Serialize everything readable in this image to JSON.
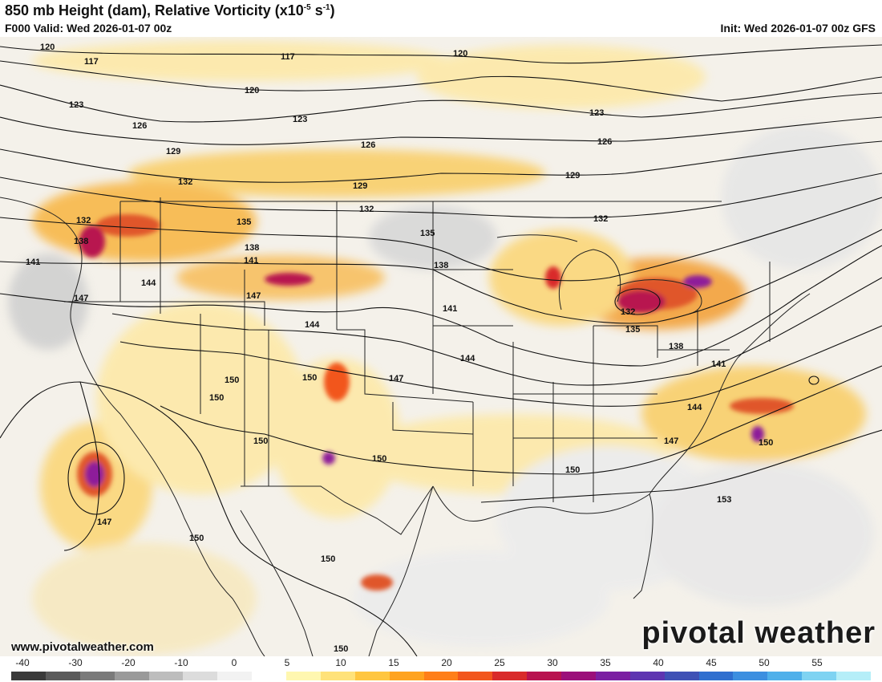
{
  "header": {
    "title_main": "850 mb Height (dam), Relative Vorticity (x10",
    "title_exp": "-5",
    "title_unit_mid": " s",
    "title_unit_exp": "-1",
    "title_end": ")",
    "valid": "F000 Valid: Wed 2026-01-07 00z",
    "init": "Init: Wed 2026-01-07 00z GFS"
  },
  "branding": {
    "url": "www.pivotalweather.com",
    "logo": "pivotal weather"
  },
  "colorbar": {
    "tick_labels": [
      "-40",
      "-30",
      "-20",
      "-10",
      "0",
      "5",
      "10",
      "15",
      "20",
      "25",
      "30",
      "35",
      "40",
      "45",
      "50",
      "55"
    ],
    "colors": [
      "#3a3a3a",
      "#5a5a5a",
      "#7a7a7a",
      "#9a9a9a",
      "#bdbdbd",
      "#dcdcdc",
      "#f2f2f2",
      "#ffffff",
      "#fff7b0",
      "#ffe27a",
      "#ffc640",
      "#ffa320",
      "#ff7f1a",
      "#f2561d",
      "#d92a2a",
      "#b8124f",
      "#9b0f7a",
      "#7b1fa2",
      "#5e35b1",
      "#3f51b5",
      "#2f6fcf",
      "#3c8fe0",
      "#4fb0ea",
      "#7fd3f2",
      "#b5eef8"
    ]
  },
  "map": {
    "contour_labels": [
      "117",
      "120",
      "123",
      "126",
      "129",
      "132",
      "135",
      "138",
      "141",
      "144",
      "147",
      "150",
      "153"
    ],
    "colors": {
      "land_bg": "#f4f1ea",
      "vort_light": "#fde9a8",
      "vort_mid": "#f8b84a",
      "vort_high": "#e0572a",
      "vort_peak": "#8e1a9a",
      "neg_gray": "#b8b8b8",
      "contour": "#111111",
      "border": "#222222"
    }
  }
}
